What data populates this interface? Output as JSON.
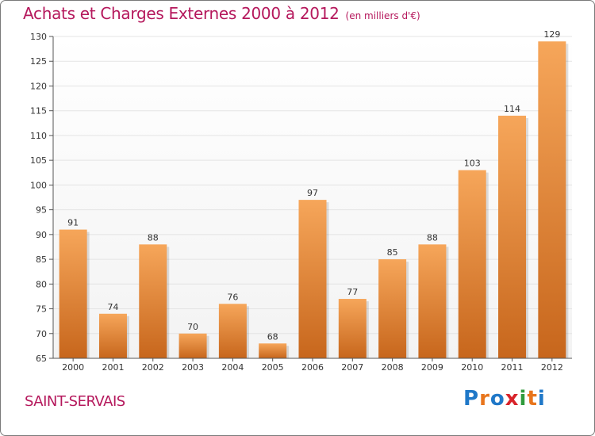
{
  "header": {
    "title": "Achats et Charges Externes 2000 à 2012",
    "unit": "(en milliers d'€)"
  },
  "footer": {
    "location": "SAINT-SERVAIS",
    "brand_letters": [
      "P",
      "r",
      "o",
      "x",
      "i",
      "t",
      "i"
    ],
    "brand_colors": [
      "#1f78c8",
      "#e8751c",
      "#1f78c8",
      "#d8232a",
      "#2f9b3c",
      "#e8751c",
      "#1f78c8"
    ]
  },
  "colors": {
    "title": "#b5185c",
    "bar_light": "#f6a65a",
    "bar_dark": "#c7661c",
    "axis": "#555555",
    "grid": "#e4e4e4",
    "plot_bg": "#f3f3f3"
  },
  "chart_data": {
    "type": "bar",
    "categories": [
      "2000",
      "2001",
      "2002",
      "2003",
      "2004",
      "2005",
      "2006",
      "2007",
      "2008",
      "2009",
      "2010",
      "2011",
      "2012"
    ],
    "values": [
      91,
      74,
      88,
      70,
      76,
      68,
      97,
      77,
      85,
      88,
      103,
      114,
      129
    ],
    "ylim": [
      65,
      130
    ],
    "yticks": [
      65,
      70,
      75,
      80,
      85,
      90,
      95,
      100,
      105,
      110,
      115,
      120,
      125,
      130
    ],
    "grid": true,
    "legend": "none"
  }
}
